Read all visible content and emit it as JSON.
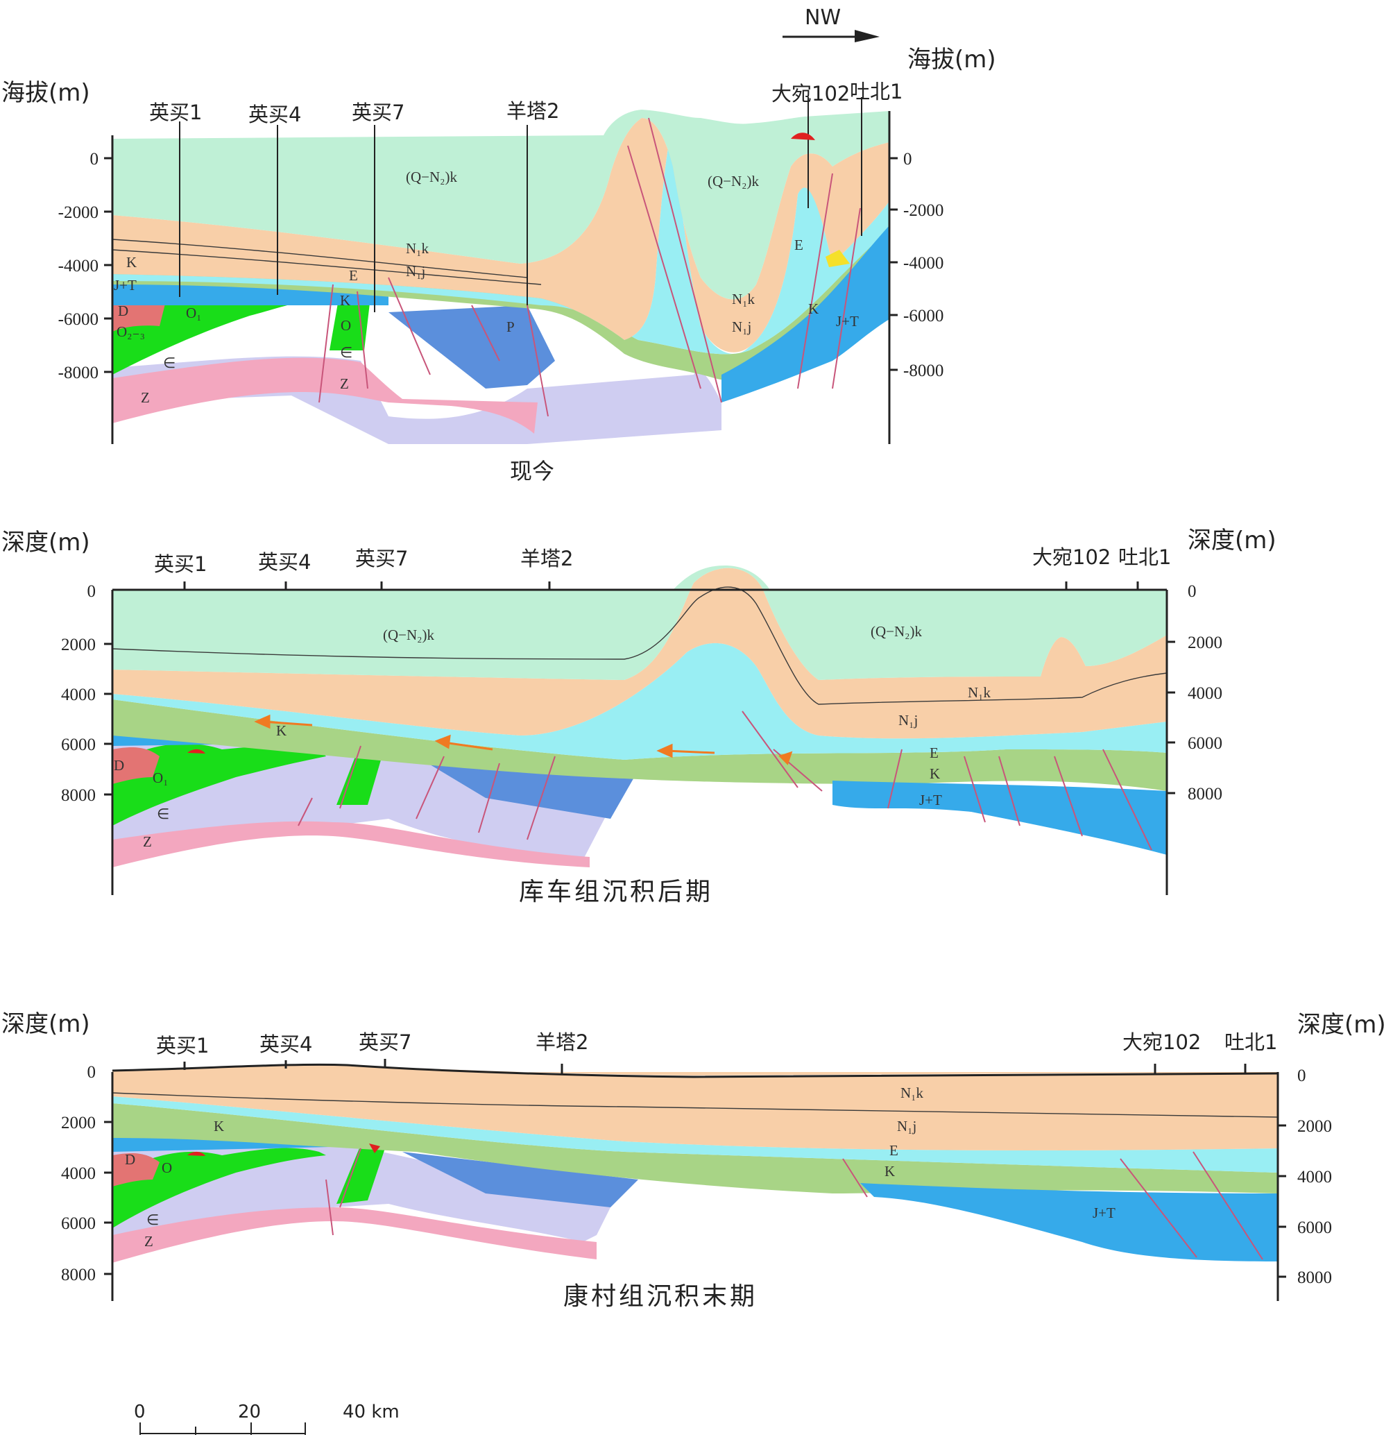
{
  "north_arrow": "NW",
  "scale_bar": {
    "ticks": [
      "0",
      "20",
      "40 km"
    ]
  },
  "panels": [
    {
      "caption": "现今",
      "left_axis_title": "海拔(m)",
      "right_axis_title": "海拔(m)",
      "ticks": [
        "0",
        "-2000",
        "-4000",
        "-6000",
        "-8000"
      ],
      "wells": [
        "英买1",
        "英买4",
        "英买7",
        "羊塔2",
        "大宛102",
        "吐北1"
      ],
      "units": {
        "qn_left": "(Q−N₂)k",
        "qn_right": "(Q−N₂)k",
        "n1k_l": "N₁k",
        "n1j_l": "N₁j",
        "n1k_r": "N₁k",
        "n1j_r": "N₁j",
        "e": "E",
        "k_left": "K",
        "k_right": "K",
        "jt_left": "J+T",
        "jt_right": "J+T",
        "d": "D",
        "o1": "O₁",
        "o23": "O₂₋₃",
        "cam": "∈",
        "z": "Z",
        "p": "P",
        "e_small": "E",
        "k_small": "K",
        "o_small": "O",
        "cam_small": "∈",
        "z_small": "Z"
      }
    },
    {
      "caption": "库车组沉积后期",
      "left_axis_title": "深度(m)",
      "right_axis_title": "深度(m)",
      "ticks": [
        "0",
        "2000",
        "4000",
        "6000",
        "8000"
      ],
      "wells": [
        "英买1",
        "英买4",
        "英买7",
        "羊塔2",
        "大宛102",
        "吐北1"
      ],
      "units": {
        "qn_left": "(Q−N₂)k",
        "qn_right": "(Q−N₂)k",
        "n1k": "N₁k",
        "n1j": "N₁j",
        "e": "E",
        "k": "K",
        "k_left": "K",
        "jt": "J+T",
        "d": "D",
        "o1": "O₁",
        "cam": "∈",
        "z": "Z"
      }
    },
    {
      "caption": "康村组沉积末期",
      "left_axis_title": "深度(m)",
      "right_axis_title": "深度(m)",
      "ticks": [
        "0",
        "2000",
        "4000",
        "6000",
        "8000"
      ],
      "wells": [
        "英买1",
        "英买4",
        "英买7",
        "羊塔2",
        "大宛102",
        "吐北1"
      ],
      "units": {
        "n1k": "N₁k",
        "n1j": "N₁j",
        "e": "E",
        "k": "K",
        "k_left": "K",
        "jt": "J+T",
        "d": "D",
        "o": "O",
        "cam": "∈",
        "z": "Z"
      }
    }
  ],
  "colors": {
    "qn": "#bff0d6",
    "n1": "#f8cfa8",
    "e": "#99eef3",
    "k": "#a8d486",
    "jt": "#36aaea",
    "p": "#5b8fdc",
    "cam": "#cfcdf1",
    "z": "#f3a7bf",
    "o": "#19dd19",
    "d": "#e37473",
    "fault": "#c8557a",
    "arrow": "#f07a22",
    "red": "#e02020"
  }
}
